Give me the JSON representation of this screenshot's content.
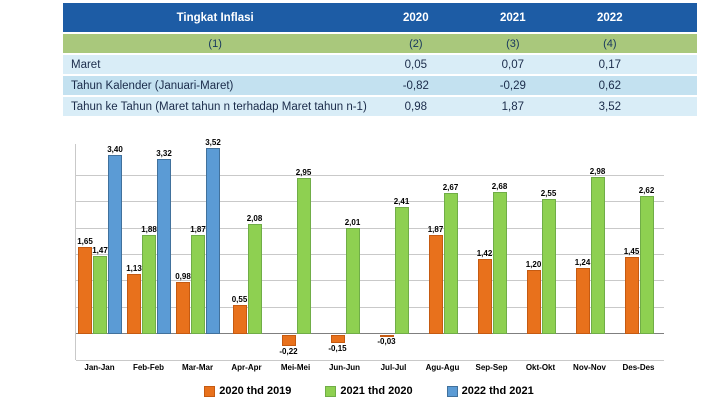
{
  "table": {
    "header": [
      "Tingkat Inflasi",
      "2020",
      "2021",
      "2022"
    ],
    "subheader": [
      "(1)",
      "(2)",
      "(3)",
      "(4)"
    ],
    "rows": [
      [
        "Maret",
        "0,05",
        "0,07",
        "0,17"
      ],
      [
        "Tahun Kalender (Januari-Maret)",
        "-0,82",
        "-0,29",
        "0,62"
      ],
      [
        "Tahun ke Tahun (Maret tahun n terhadap Maret tahun n-1)",
        "0,98",
        "1,87",
        "3,52"
      ]
    ],
    "colors": {
      "header_bg": "#1d5ca5",
      "header_text": "#ffffff",
      "subheader_bg": "#a9c87c",
      "row_light_bg": "#d9edf7",
      "row_mid_bg": "#c3e1f0"
    }
  },
  "chart_data": {
    "type": "bar",
    "title": "",
    "xlabel": "",
    "ylabel": "",
    "categories": [
      "Jan-Jan",
      "Feb-Feb",
      "Mar-Mar",
      "Apr-Apr",
      "Mei-Mei",
      "Jun-Jun",
      "Jul-Jul",
      "Agu-Agu",
      "Sep-Sep",
      "Okt-Okt",
      "Nov-Nov",
      "Des-Des"
    ],
    "series": [
      {
        "name": "2020 thd 2019",
        "color": "#e8711c",
        "border": "#c55a11",
        "values": [
          1.65,
          1.13,
          0.98,
          0.55,
          -0.22,
          -0.15,
          -0.03,
          1.87,
          1.42,
          1.2,
          1.24,
          1.45
        ]
      },
      {
        "name": "2021 thd 2020",
        "color": "#8ed051",
        "border": "#70ad47",
        "values": [
          1.47,
          1.88,
          1.87,
          2.08,
          2.95,
          2.01,
          2.41,
          2.67,
          2.68,
          2.55,
          2.98,
          2.62
        ]
      },
      {
        "name": "2022 thd 2021",
        "color": "#5b9bd5",
        "border": "#41719c",
        "values": [
          3.4,
          3.32,
          3.52,
          null,
          null,
          null,
          null,
          null,
          null,
          null,
          null,
          null
        ]
      }
    ],
    "ylim": [
      -0.5,
      3.6
    ],
    "gridline_step": 0.5,
    "grid": true,
    "y_axis_labels": false,
    "legend_position": "bottom",
    "value_label_format": "comma-decimal"
  }
}
